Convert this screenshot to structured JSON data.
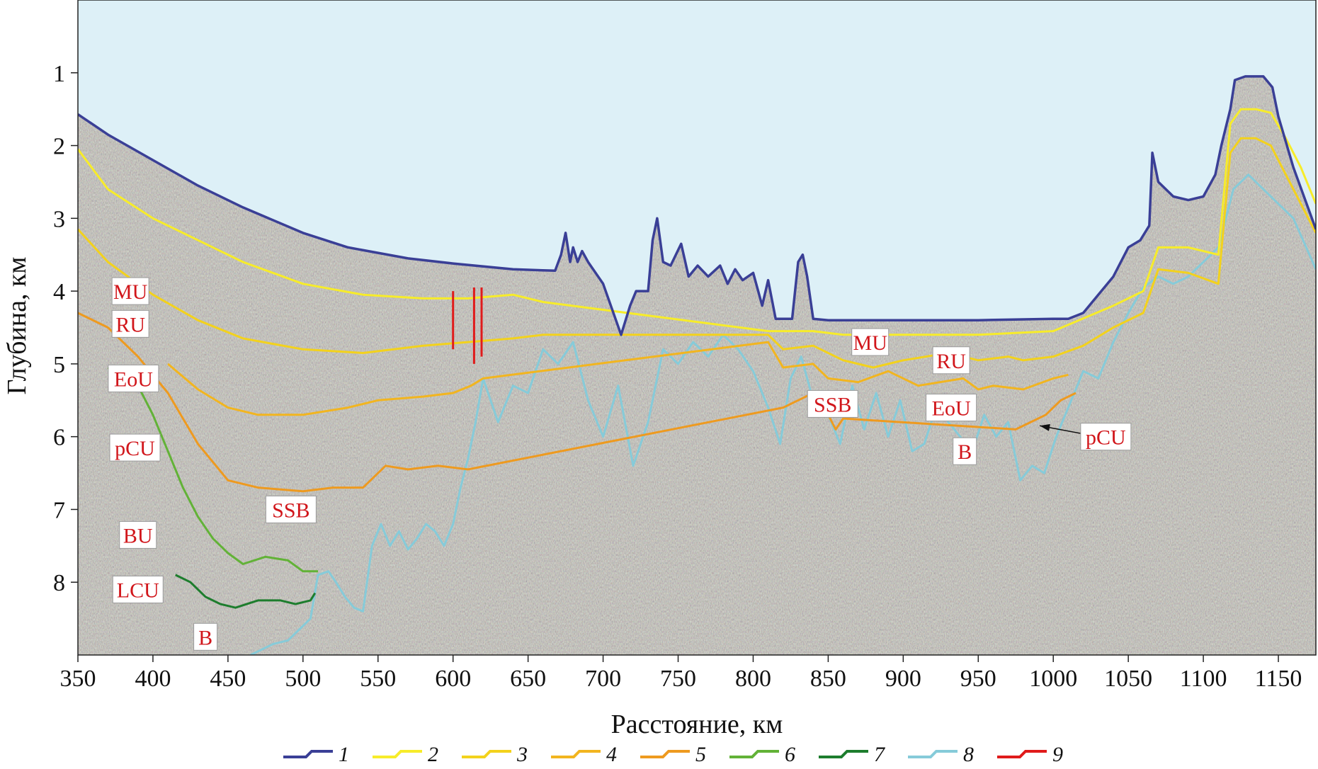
{
  "chart_data": {
    "type": "line",
    "xlabel": "Расстояние, км",
    "ylabel": "Глубина, км",
    "xlim": [
      350,
      1175
    ],
    "ylim": [
      0,
      9
    ],
    "y_inverted": true,
    "x_ticks": [
      350,
      400,
      450,
      500,
      550,
      600,
      650,
      700,
      750,
      800,
      850,
      900,
      950,
      1000,
      1050,
      1100,
      1150
    ],
    "y_ticks": [
      1,
      2,
      3,
      4,
      5,
      6,
      7,
      8
    ],
    "colors": {
      "water": "#ddf0f7",
      "seismic_bg": "#c9c6ba",
      "h1": "#3a3f96",
      "h2": "#f7ec2a",
      "h3": "#f3d21c",
      "h4": "#f2b51f",
      "h5": "#ee9a1f",
      "h6": "#62b237",
      "h7": "#1d7d2d",
      "h8": "#86cbd9",
      "h9": "#e01b1b",
      "label_text": "#d1161b"
    },
    "legend": [
      "1",
      "2",
      "3",
      "4",
      "5",
      "6",
      "7",
      "8",
      "9"
    ],
    "series": [
      {
        "key": "h1",
        "x": [
          350,
          370,
          400,
          430,
          460,
          500,
          530,
          570,
          600,
          640,
          668,
          672,
          675,
          678,
          680,
          683,
          686,
          690,
          700,
          712,
          718,
          722,
          730,
          733,
          736,
          740,
          745,
          752,
          757,
          763,
          770,
          778,
          783,
          788,
          793,
          800,
          806,
          810,
          815,
          826,
          830,
          833,
          836,
          840,
          850,
          900,
          950,
          1000,
          1010,
          1020,
          1030,
          1040,
          1050,
          1058,
          1064,
          1066,
          1070,
          1080,
          1090,
          1100,
          1108,
          1112,
          1118,
          1121,
          1128,
          1135,
          1140,
          1146,
          1150,
          1160,
          1175
        ],
        "y": [
          1.57,
          1.85,
          2.2,
          2.55,
          2.85,
          3.2,
          3.4,
          3.55,
          3.62,
          3.7,
          3.72,
          3.5,
          3.2,
          3.6,
          3.4,
          3.6,
          3.45,
          3.6,
          3.9,
          4.6,
          4.2,
          4.0,
          4.0,
          3.3,
          3.0,
          3.6,
          3.65,
          3.35,
          3.8,
          3.65,
          3.8,
          3.65,
          3.9,
          3.7,
          3.85,
          3.75,
          4.2,
          3.85,
          4.38,
          4.38,
          3.6,
          3.5,
          3.8,
          4.38,
          4.4,
          4.4,
          4.4,
          4.38,
          4.38,
          4.3,
          4.05,
          3.8,
          3.4,
          3.3,
          3.1,
          2.1,
          2.5,
          2.7,
          2.75,
          2.7,
          2.4,
          2.0,
          1.5,
          1.1,
          1.05,
          1.05,
          1.05,
          1.2,
          1.6,
          2.3,
          3.15
        ]
      },
      {
        "key": "h2",
        "x": [
          350,
          370,
          400,
          430,
          460,
          500,
          540,
          580,
          610,
          640,
          660,
          810,
          820,
          840,
          860,
          900,
          950,
          1000,
          1040,
          1060,
          1070,
          1090,
          1110,
          1118,
          1125,
          1135,
          1145,
          1155,
          1165,
          1175
        ],
        "y": [
          2.05,
          2.6,
          3.0,
          3.3,
          3.6,
          3.9,
          4.05,
          4.1,
          4.1,
          4.05,
          4.15,
          4.55,
          4.55,
          4.55,
          4.6,
          4.6,
          4.6,
          4.55,
          4.2,
          4.0,
          3.4,
          3.4,
          3.5,
          1.7,
          1.5,
          1.5,
          1.55,
          1.9,
          2.3,
          2.8
        ]
      },
      {
        "key": "h3",
        "x": [
          350,
          370,
          400,
          430,
          460,
          500,
          540,
          580,
          610,
          640,
          660,
          810,
          820,
          840,
          860,
          880,
          900,
          930,
          950,
          970,
          980,
          1000,
          1020,
          1040,
          1060,
          1070,
          1090,
          1110,
          1118,
          1125,
          1135,
          1145,
          1155,
          1165,
          1175
        ],
        "y": [
          3.15,
          3.6,
          4.05,
          4.4,
          4.65,
          4.8,
          4.85,
          4.75,
          4.7,
          4.65,
          4.6,
          4.6,
          4.8,
          4.75,
          4.95,
          5.05,
          4.95,
          4.85,
          4.95,
          4.9,
          4.95,
          4.9,
          4.75,
          4.5,
          4.3,
          3.7,
          3.75,
          3.9,
          2.1,
          1.9,
          1.9,
          2.0,
          2.4,
          2.8,
          3.2
        ]
      },
      {
        "key": "h4",
        "x": [
          410,
          430,
          450,
          470,
          500,
          530,
          550,
          580,
          600,
          612,
          620,
          810,
          820,
          840,
          850,
          870,
          890,
          910,
          940,
          950,
          960,
          980,
          1000,
          1010
        ],
        "y": [
          5.0,
          5.35,
          5.6,
          5.7,
          5.7,
          5.6,
          5.5,
          5.45,
          5.4,
          5.3,
          5.2,
          4.7,
          5.05,
          5.0,
          5.2,
          5.25,
          5.1,
          5.3,
          5.2,
          5.35,
          5.3,
          5.35,
          5.2,
          5.15
        ]
      },
      {
        "key": "h5",
        "x": [
          350,
          370,
          390,
          410,
          430,
          450,
          470,
          500,
          520,
          540,
          555,
          570,
          590,
          610,
          820,
          830,
          840,
          850,
          855,
          860,
          975,
          985,
          995,
          1005,
          1015
        ],
        "y": [
          4.3,
          4.5,
          4.9,
          5.4,
          6.1,
          6.6,
          6.7,
          6.75,
          6.7,
          6.7,
          6.4,
          6.45,
          6.4,
          6.45,
          5.6,
          5.5,
          5.4,
          5.7,
          5.9,
          5.75,
          5.9,
          5.8,
          5.7,
          5.5,
          5.4
        ]
      },
      {
        "key": "h6",
        "x": [
          370,
          380,
          385,
          390,
          400,
          410,
          420,
          430,
          440,
          450,
          460,
          475,
          490,
          500,
          510
        ],
        "y": [
          5.05,
          5.2,
          5.1,
          5.3,
          5.7,
          6.2,
          6.7,
          7.1,
          7.4,
          7.6,
          7.75,
          7.65,
          7.7,
          7.85,
          7.85
        ]
      },
      {
        "key": "h7",
        "x": [
          415,
          425,
          435,
          445,
          455,
          470,
          485,
          495,
          505,
          508
        ],
        "y": [
          7.9,
          8.0,
          8.2,
          8.3,
          8.35,
          8.25,
          8.25,
          8.3,
          8.25,
          8.15
        ]
      },
      {
        "key": "h8",
        "x": [
          465,
          480,
          490,
          500,
          505,
          510,
          517,
          522,
          528,
          534,
          540,
          546,
          552,
          558,
          564,
          570,
          576,
          582,
          588,
          594,
          600,
          605,
          610,
          615,
          620,
          630,
          640,
          650,
          660,
          670,
          680,
          690,
          700,
          710,
          720,
          730,
          740,
          750,
          760,
          770,
          780,
          790,
          800,
          810,
          818,
          825,
          832,
          840,
          850,
          858,
          866,
          874,
          882,
          890,
          898,
          906,
          914,
          922,
          930,
          938,
          946,
          954,
          962,
          970,
          978,
          986,
          994,
          1002,
          1010,
          1020,
          1030,
          1040,
          1050,
          1060,
          1070,
          1080,
          1090,
          1100,
          1110,
          1120,
          1130,
          1140,
          1150,
          1160,
          1175
        ],
        "y": [
          9.0,
          8.85,
          8.8,
          8.6,
          8.5,
          7.9,
          7.85,
          8.0,
          8.2,
          8.35,
          8.4,
          7.5,
          7.2,
          7.5,
          7.3,
          7.55,
          7.4,
          7.2,
          7.3,
          7.5,
          7.2,
          6.7,
          6.3,
          5.8,
          5.2,
          5.8,
          5.3,
          5.4,
          4.8,
          5.0,
          4.7,
          5.5,
          6.0,
          5.3,
          6.4,
          5.8,
          4.8,
          5.0,
          4.7,
          4.9,
          4.6,
          4.8,
          5.1,
          5.6,
          6.1,
          5.2,
          4.9,
          5.5,
          5.7,
          6.1,
          5.3,
          5.9,
          5.4,
          6.0,
          5.5,
          6.2,
          6.1,
          5.6,
          5.8,
          6.0,
          6.2,
          5.7,
          6.0,
          5.8,
          6.6,
          6.4,
          6.5,
          6.0,
          5.6,
          5.1,
          5.2,
          4.7,
          4.3,
          3.95,
          3.8,
          3.9,
          3.8,
          3.6,
          3.4,
          2.6,
          2.4,
          2.6,
          2.8,
          3.0,
          3.7
        ]
      },
      {
        "key": "h9",
        "x": [
          600,
          600
        ],
        "y": [
          4.0,
          4.8
        ]
      },
      {
        "key": "h9",
        "x": [
          614,
          614
        ],
        "y": [
          3.95,
          5.0
        ]
      },
      {
        "key": "h9",
        "x": [
          619,
          619
        ],
        "y": [
          3.95,
          4.9
        ]
      }
    ],
    "annotations": [
      {
        "text": "MU",
        "x": 385,
        "y": 4.0
      },
      {
        "text": "RU",
        "x": 385,
        "y": 4.45
      },
      {
        "text": "EoU",
        "x": 387,
        "y": 5.2
      },
      {
        "text": "pCU",
        "x": 388,
        "y": 6.15
      },
      {
        "text": "BU",
        "x": 390,
        "y": 7.35
      },
      {
        "text": "LCU",
        "x": 390,
        "y": 8.1
      },
      {
        "text": "B",
        "x": 435,
        "y": 8.75
      },
      {
        "text": "SSB",
        "x": 492,
        "y": 7.0
      },
      {
        "text": "MU",
        "x": 878,
        "y": 4.7
      },
      {
        "text": "RU",
        "x": 932,
        "y": 4.95
      },
      {
        "text": "SSB",
        "x": 853,
        "y": 5.55
      },
      {
        "text": "EoU",
        "x": 932,
        "y": 5.6
      },
      {
        "text": "B",
        "x": 941,
        "y": 6.2
      },
      {
        "text": "pCU",
        "x": 1035,
        "y": 6.0
      }
    ],
    "arrow": {
      "from_x": 1030,
      "from_y": 6.0,
      "to_x": 991,
      "to_y": 5.85
    }
  }
}
